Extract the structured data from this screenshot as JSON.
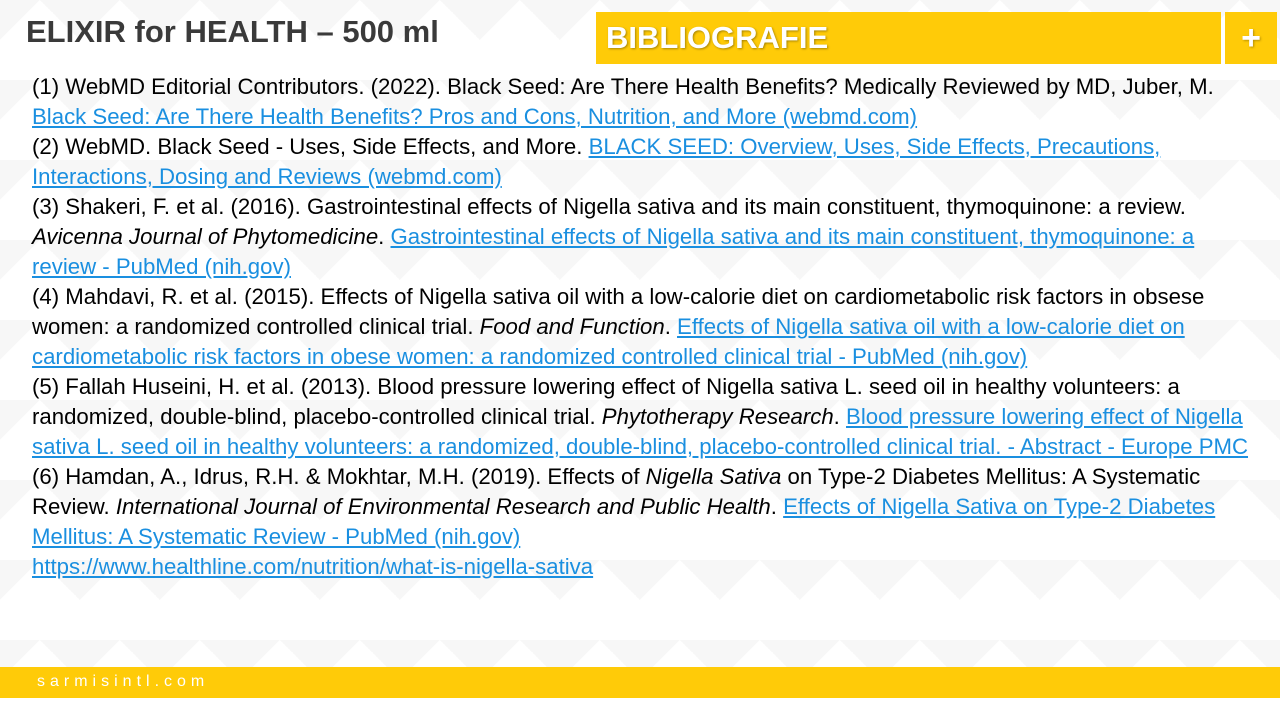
{
  "header": {
    "title": "ELIXIR for HEALTH – 500 ml",
    "section": "BIBLIOGRAFIE",
    "plus_label": "+"
  },
  "colors": {
    "accent": "#FFCB08",
    "link": "#1a8fe0",
    "title": "#3a3a3a"
  },
  "references": [
    [
      {
        "t": "text",
        "v": "(1) WebMD Editorial Contributors. (2022). Black Seed: Are There Health Benefits? Medically Reviewed by MD, Juber, M. "
      },
      {
        "t": "link",
        "v": "Black Seed: Are There Health Benefits? Pros and Cons, Nutrition, and More (webmd.com)"
      }
    ],
    [
      {
        "t": "text",
        "v": "(2) WebMD. Black Seed - Uses, Side Effects, and More. "
      },
      {
        "t": "link",
        "v": "BLACK SEED: Overview, Uses, Side Effects, Precautions, Interactions, Dosing and Reviews (webmd.com)"
      }
    ],
    [
      {
        "t": "text",
        "v": "(3) Shakeri, F. et al. (2016). Gastrointestinal effects of Nigella sativa and its main constituent, thymoquinone: a review. "
      },
      {
        "t": "italic",
        "v": "Avicenna Journal of Phytomedicine"
      },
      {
        "t": "text",
        "v": ". "
      },
      {
        "t": "link",
        "v": "Gastrointestinal effects of Nigella sativa and its main constituent, thymoquinone: a review - PubMed (nih.gov)"
      }
    ],
    [
      {
        "t": "text",
        "v": "(4) Mahdavi, R. et al. (2015). Effects of Nigella sativa oil with a low-calorie diet on cardiometabolic risk factors in obsese women: a randomized controlled clinical trial. "
      },
      {
        "t": "italic",
        "v": "Food and Function"
      },
      {
        "t": "text",
        "v": ". "
      },
      {
        "t": "link",
        "v": "Effects of Nigella sativa oil with a low-calorie diet on cardiometabolic risk factors in obese women: a randomized controlled clinical trial - PubMed (nih.gov)"
      }
    ],
    [
      {
        "t": "text",
        "v": "(5) Fallah Huseini, H. et al. (2013). Blood pressure lowering effect of Nigella sativa L. seed oil in healthy volunteers: a randomized, double-blind, placebo-controlled clinical trial. "
      },
      {
        "t": "italic",
        "v": "Phytotherapy Research"
      },
      {
        "t": "text",
        "v": ". "
      },
      {
        "t": "link",
        "v": "Blood pressure lowering effect of Nigella sativa L. seed oil in healthy volunteers: a randomized, double-blind, placebo-controlled clinical trial. - Abstract - Europe PMC"
      }
    ],
    [
      {
        "t": "text",
        "v": "(6) Hamdan, A., Idrus, R.H. & Mokhtar, M.H. (2019). Effects of "
      },
      {
        "t": "italic",
        "v": "Nigella Sativa"
      },
      {
        "t": "text",
        "v": " on Type-2 Diabetes Mellitus: A Systematic Review. "
      },
      {
        "t": "italic",
        "v": "International Journal of Environmental Research and Public Health"
      },
      {
        "t": "text",
        "v": ". "
      },
      {
        "t": "link",
        "v": "Effects of Nigella Sativa on Type-2 Diabetes Mellitus: A Systematic Review - PubMed (nih.gov)"
      }
    ],
    [
      {
        "t": "link",
        "v": "https://www.healthline.com/nutrition/what-is-nigella-sativa"
      }
    ]
  ],
  "footer": {
    "website": "sarmisintl.com"
  }
}
